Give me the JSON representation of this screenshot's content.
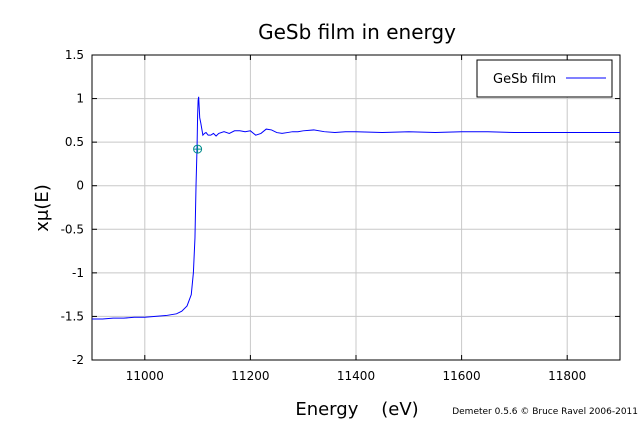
{
  "chart_data": {
    "type": "line",
    "title": "GeSb film in energy",
    "xlabel": "Energy    (eV)",
    "ylabel": "xμ(E)",
    "xlim": [
      10900,
      11900
    ],
    "ylim": [
      -2,
      1.5
    ],
    "x_ticks": [
      11000,
      11200,
      11400,
      11600,
      11800
    ],
    "y_ticks": [
      -2,
      -1.5,
      -1,
      -0.5,
      0,
      0.5,
      1,
      1.5
    ],
    "x_tick_labels": [
      "11000",
      "11200",
      "11400",
      "11600",
      "11800"
    ],
    "y_tick_labels": [
      "-2",
      "-1.5",
      "-1",
      "-0.5",
      "0",
      "0.5",
      "1",
      "1.5"
    ],
    "grid": true,
    "legend_position": "top-right",
    "series": [
      {
        "name": "GeSb film",
        "color": "#0000ff",
        "x": [
          10900,
          10920,
          10940,
          10960,
          10980,
          11000,
          11020,
          11040,
          11060,
          11070,
          11080,
          11088,
          11092,
          11095,
          11097,
          11099,
          11100,
          11101,
          11102,
          11103,
          11104,
          11106,
          11108,
          11110,
          11113,
          11116,
          11120,
          11125,
          11130,
          11135,
          11140,
          11150,
          11160,
          11170,
          11180,
          11190,
          11200,
          11210,
          11220,
          11230,
          11240,
          11250,
          11260,
          11270,
          11280,
          11290,
          11300,
          11320,
          11340,
          11360,
          11380,
          11400,
          11450,
          11500,
          11550,
          11600,
          11650,
          11700,
          11750,
          11800,
          11850,
          11900
        ],
        "y": [
          -1.53,
          -1.53,
          -1.52,
          -1.52,
          -1.51,
          -1.51,
          -1.5,
          -1.49,
          -1.47,
          -1.44,
          -1.38,
          -1.25,
          -1.0,
          -0.6,
          0.0,
          0.45,
          0.8,
          0.98,
          1.02,
          0.9,
          0.78,
          0.72,
          0.65,
          0.58,
          0.6,
          0.61,
          0.58,
          0.58,
          0.6,
          0.57,
          0.6,
          0.62,
          0.6,
          0.63,
          0.63,
          0.62,
          0.63,
          0.58,
          0.6,
          0.65,
          0.64,
          0.61,
          0.6,
          0.61,
          0.62,
          0.62,
          0.63,
          0.64,
          0.62,
          0.61,
          0.62,
          0.62,
          0.61,
          0.62,
          0.61,
          0.62,
          0.62,
          0.61,
          0.61,
          0.61,
          0.61,
          0.61
        ]
      }
    ],
    "marker": {
      "x": 11100,
      "y": 0.42,
      "color": "#008b8b"
    }
  },
  "credit": "Demeter 0.5.6 © Bruce Ravel 2006-2011"
}
